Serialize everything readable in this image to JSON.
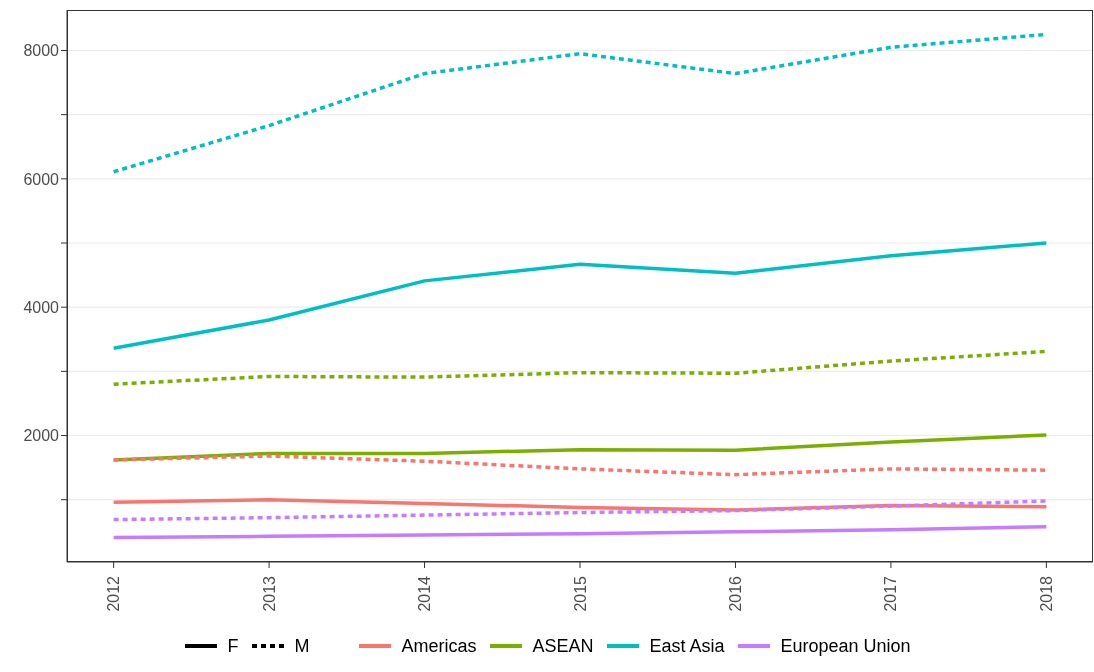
{
  "chart_data": {
    "type": "line",
    "x": [
      2012,
      2013,
      2014,
      2015,
      2016,
      2017,
      2018
    ],
    "xlim": [
      2011.7,
      2018.3
    ],
    "xticks": [
      2012,
      2013,
      2014,
      2015,
      2016,
      2017,
      2018
    ],
    "ylim": [
      29,
      8631
    ],
    "yticks": [
      {
        "value": 1000,
        "label": null
      },
      2000,
      {
        "value": 3000,
        "label": null
      },
      4000,
      {
        "value": 5000,
        "label": null
      },
      6000,
      {
        "value": 7000,
        "label": null
      },
      8000
    ],
    "grid": "y",
    "legend": "bottom",
    "marker": "none",
    "annotations": [
      "F",
      "M"
    ],
    "series": [
      {
        "name": "Americas",
        "color": "#f8766d",
        "line_style": "solid",
        "values": [
          960,
          1000,
          940,
          880,
          840,
          910,
          890
        ]
      },
      {
        "color": "#f8766d",
        "line_style": "dashed",
        "values": [
          1620,
          1680,
          1600,
          1480,
          1390,
          1480,
          1460
        ]
      },
      {
        "name": "ASEAN",
        "color": "#7cae00",
        "line_style": "solid",
        "values": [
          1620,
          1720,
          1720,
          1780,
          1770,
          1900,
          2010
        ]
      },
      {
        "color": "#7cae00",
        "line_style": "dashed",
        "values": [
          2800,
          2920,
          2910,
          2980,
          2970,
          3160,
          3310
        ]
      },
      {
        "name": "East Asia",
        "color": "#00bfc4",
        "line_style": "solid",
        "values": [
          3360,
          3800,
          4410,
          4670,
          4530,
          4800,
          5000
        ]
      },
      {
        "color": "#00bfc4",
        "line_style": "dashed",
        "values": [
          6110,
          6830,
          7640,
          7950,
          7640,
          8050,
          8250
        ]
      },
      {
        "name": "European Union",
        "color": "#c77cff",
        "line_style": "solid",
        "values": [
          410,
          430,
          450,
          470,
          500,
          530,
          580
        ]
      },
      {
        "color": "#c77cff",
        "line_style": "dashed",
        "values": [
          690,
          720,
          760,
          800,
          830,
          900,
          980
        ]
      }
    ]
  }
}
